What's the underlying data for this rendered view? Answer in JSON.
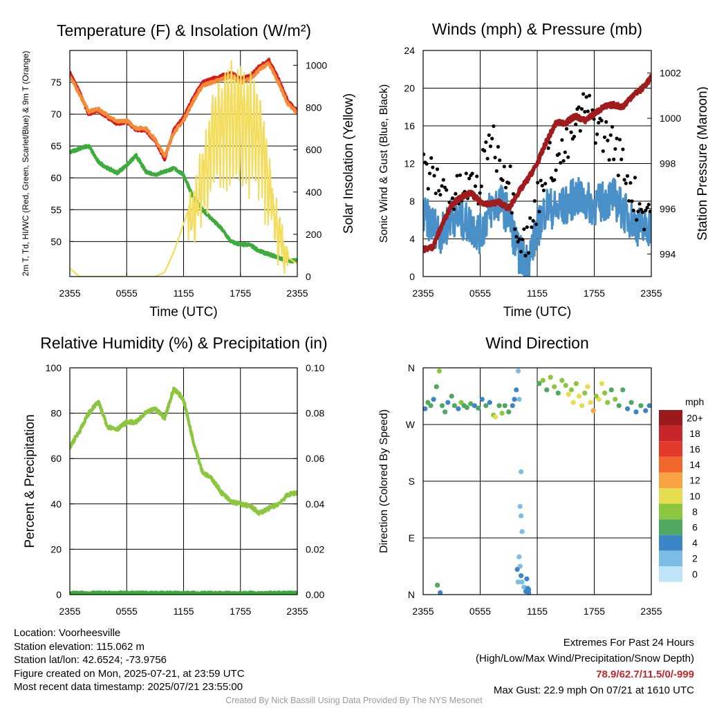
{
  "footer": {
    "location": "Location: Voorheesville",
    "elevation": "Station elevation: 115.062 m",
    "latlon": "Station lat/lon: 42.6524; -73.9756",
    "created": "Figure created on Mon, 2025-07-21, at 23:59 UTC",
    "recent": "Most recent data timestamp: 2025/07/21 23:55:00",
    "extremes_title": "Extremes For Past 24 Hours",
    "extremes_legend": "(High/Low/Max Wind/Precipitation/Snow Depth)",
    "extremes_values": "78.9/62.7/11.5/0/-999",
    "max_gust": "Max Gust: 22.9 mph On 07/21 at 1610 UTC",
    "credit": "Created By Nick Bassill Using Data Provided By The NYS Mesonet"
  },
  "chart_data": [
    {
      "type": "line",
      "title": "Temperature (F) & Insolation (W/m²)",
      "xlabel": "Time (UTC)",
      "ylabel": "2m T, Td, HI/WC (Red, Green, Scarlet/Blue) & 9m T (Orange)",
      "y2label": "Solar Insolation (Yellow)",
      "xlim": [
        0,
        24
      ],
      "xticks": [
        0,
        6,
        12,
        18,
        24
      ],
      "xticklabels": [
        "2355",
        "0555",
        "1155",
        "1755",
        "2355"
      ],
      "ylim": [
        44.5,
        80
      ],
      "yticks": [
        50,
        55,
        60,
        65,
        70,
        75
      ],
      "y2lim": [
        0,
        1070
      ],
      "y2ticks": [
        0,
        200,
        400,
        600,
        800,
        1000
      ],
      "grid": true,
      "x": [
        0,
        1,
        2,
        3,
        4,
        5,
        6,
        7,
        8,
        9,
        10,
        11,
        12,
        13,
        14,
        15,
        16,
        17,
        18,
        19,
        20,
        21,
        22,
        23,
        24
      ],
      "series": [
        {
          "role": "2m T",
          "color": "#d7191c",
          "axis": "left",
          "values": [
            76.5,
            73.5,
            70.0,
            70.5,
            69.5,
            68.5,
            68.8,
            67.5,
            67.5,
            65.8,
            63.0,
            67.5,
            69.5,
            72.5,
            75.0,
            75.5,
            76.0,
            76.5,
            75.5,
            76.0,
            77.5,
            78.5,
            75.5,
            72.0,
            70.5
          ]
        },
        {
          "role": "9m T",
          "color": "#f58a3a",
          "axis": "left",
          "values": [
            76.0,
            73.2,
            70.4,
            70.8,
            69.8,
            68.8,
            69.0,
            67.8,
            67.8,
            66.0,
            63.4,
            67.2,
            69.0,
            72.0,
            74.5,
            75.0,
            75.5,
            76.0,
            75.0,
            75.5,
            77.0,
            78.0,
            75.0,
            71.6,
            70.2
          ]
        },
        {
          "role": "Td",
          "color": "#3cac3c",
          "axis": "left",
          "values": [
            64.0,
            64.6,
            65.0,
            62.5,
            61.5,
            60.8,
            62.0,
            63.5,
            61.0,
            60.5,
            61.0,
            61.5,
            60.5,
            57.0,
            55.0,
            53.5,
            52.0,
            50.0,
            49.5,
            49.5,
            48.5,
            48.0,
            47.5,
            47.0,
            47.0
          ]
        },
        {
          "role": "Solar insolation",
          "color": "#f4dc5c",
          "axis": "right",
          "values": [
            40,
            0,
            0,
            0,
            0,
            0,
            0,
            0,
            0,
            0,
            20,
            120,
            250,
            380,
            560,
            820,
            900,
            940,
            950,
            900,
            820,
            520,
            230,
            90,
            60
          ]
        }
      ]
    },
    {
      "type": "scatter",
      "title": "Winds (mph) & Pressure (mb)",
      "xlabel": "Time (UTC)",
      "ylabel": "Sonic Wind & Gust (Blue, Black)",
      "y2label": "Station Pressure (Maroon)",
      "xlim": [
        0,
        24
      ],
      "xticks": [
        0,
        6,
        12,
        18,
        24
      ],
      "xticklabels": [
        "2355",
        "0555",
        "1155",
        "1755",
        "2355"
      ],
      "ylim": [
        0,
        24
      ],
      "yticks": [
        0,
        4,
        8,
        12,
        16,
        20,
        24
      ],
      "y2lim": [
        993.0,
        1003.0
      ],
      "y2ticks": [
        994,
        996,
        998,
        1000,
        1002
      ],
      "grid": true,
      "x": [
        0,
        1,
        2,
        3,
        4,
        5,
        6,
        7,
        8,
        9,
        10,
        11,
        12,
        13,
        14,
        15,
        16,
        17,
        18,
        19,
        20,
        21,
        22,
        23,
        24
      ],
      "series": [
        {
          "role": "Sonic wind",
          "color": "#4a90c8",
          "axis": "left",
          "values": [
            6.5,
            5.5,
            4.5,
            6.5,
            6.0,
            5.5,
            4.5,
            7.0,
            8.0,
            6.5,
            2.5,
            1.5,
            5.0,
            7.5,
            7.0,
            7.5,
            8.5,
            8.0,
            7.5,
            8.0,
            8.5,
            7.0,
            6.0,
            5.0,
            5.5
          ]
        },
        {
          "role": "Gust",
          "color": "#000000",
          "axis": "left",
          "values": [
            11.5,
            10.5,
            9.5,
            8.0,
            9.0,
            9.5,
            9.5,
            15.5,
            12.5,
            11.0,
            5.0,
            3.5,
            8.0,
            12.5,
            12.0,
            13.5,
            15.5,
            18.0,
            16.5,
            15.0,
            14.0,
            12.0,
            9.0,
            7.0,
            7.5
          ]
        },
        {
          "role": "Station pressure",
          "color": "#a01c1c",
          "axis": "right",
          "values": [
            994.2,
            994.3,
            995.3,
            996.2,
            996.5,
            996.7,
            996.3,
            996.2,
            996.3,
            996.0,
            996.7,
            997.3,
            998.0,
            999.0,
            999.8,
            999.8,
            1000.1,
            999.9,
            1000.2,
            1000.5,
            1000.6,
            1000.5,
            1001.0,
            1001.3,
            1001.8
          ]
        }
      ]
    },
    {
      "type": "line",
      "title": "Relative Humidity (%) & Precipitation (in)",
      "xlabel": "",
      "ylabel": "Percent & Precipitation",
      "xlim": [
        0,
        24
      ],
      "xticks": [
        0,
        6,
        12,
        18,
        24
      ],
      "xticklabels": [
        "2355",
        "0555",
        "1155",
        "1755",
        "2355"
      ],
      "ylim": [
        0,
        100
      ],
      "yticks": [
        0,
        20,
        40,
        60,
        80,
        100
      ],
      "y2lim": [
        0,
        0.1
      ],
      "y2ticks": [
        0,
        0.02,
        0.04,
        0.06,
        0.08,
        0.1
      ],
      "y2ticklabels": [
        "0.00",
        "0.02",
        "0.04",
        "0.06",
        "0.08",
        "0.10"
      ],
      "grid": true,
      "x": [
        0,
        1,
        2,
        3,
        4,
        5,
        6,
        7,
        8,
        9,
        10,
        11,
        12,
        13,
        14,
        15,
        16,
        17,
        18,
        19,
        20,
        21,
        22,
        23,
        24
      ],
      "series": [
        {
          "role": "Relative humidity",
          "color": "#8cc63e",
          "axis": "left",
          "values": [
            65,
            72,
            80,
            85,
            74,
            73,
            76,
            76,
            80,
            82,
            78,
            91,
            86,
            68,
            54,
            51,
            45,
            41,
            40,
            39,
            36,
            38,
            40,
            44,
            45
          ]
        },
        {
          "role": "Precipitation",
          "color": "#3aaa3a",
          "axis": "right",
          "values": [
            0,
            0,
            0,
            0,
            0,
            0,
            0,
            0,
            0,
            0,
            0,
            0,
            0,
            0,
            0,
            0,
            0,
            0,
            0,
            0,
            0,
            0,
            0,
            0,
            0
          ]
        }
      ]
    },
    {
      "type": "scatter",
      "title": "Wind Direction",
      "xlabel": "",
      "ylabel": "Direction (Colored By Speed)",
      "xlim": [
        0,
        24
      ],
      "xticks": [
        0,
        6,
        12,
        18,
        24
      ],
      "xticklabels": [
        "2355",
        "0555",
        "1155",
        "1755",
        "2355"
      ],
      "ylim": [
        0,
        360
      ],
      "yticks": [
        0,
        90,
        180,
        270,
        360
      ],
      "yticklabels": [
        "N",
        "E",
        "S",
        "W",
        "N"
      ],
      "grid": true,
      "legend": {
        "title": "mph",
        "placement": "right",
        "labels": [
          "20+",
          "18",
          "16",
          "14",
          "12",
          "10",
          "8",
          "6",
          "4",
          "2",
          "0"
        ],
        "colors": [
          "#9c1a1c",
          "#c7262b",
          "#e23a2a",
          "#f2672c",
          "#f8a344",
          "#e5dc50",
          "#8cc63e",
          "#4ea860",
          "#3d86c6",
          "#7cbde6",
          "#bfe4f7"
        ]
      },
      "points": [
        {
          "x": 0.2,
          "dir": 295,
          "mph": 4
        },
        {
          "x": 0.5,
          "dir": 305,
          "mph": 5
        },
        {
          "x": 0.8,
          "dir": 300,
          "mph": 6
        },
        {
          "x": 1.1,
          "dir": 310,
          "mph": 4
        },
        {
          "x": 1.4,
          "dir": 330,
          "mph": 6
        },
        {
          "x": 1.7,
          "dir": 355,
          "mph": 7
        },
        {
          "x": 2.0,
          "dir": 300,
          "mph": 5
        },
        {
          "x": 2.3,
          "dir": 290,
          "mph": 6
        },
        {
          "x": 2.6,
          "dir": 305,
          "mph": 4
        },
        {
          "x": 3.0,
          "dir": 315,
          "mph": 5
        },
        {
          "x": 3.3,
          "dir": 300,
          "mph": 6
        },
        {
          "x": 3.7,
          "dir": 295,
          "mph": 4
        },
        {
          "x": 4.0,
          "dir": 305,
          "mph": 7
        },
        {
          "x": 4.3,
          "dir": 300,
          "mph": 6
        },
        {
          "x": 4.6,
          "dir": 297,
          "mph": 5
        },
        {
          "x": 5.0,
          "dir": 303,
          "mph": 6
        },
        {
          "x": 5.4,
          "dir": 300,
          "mph": 4
        },
        {
          "x": 5.8,
          "dir": 296,
          "mph": 5
        },
        {
          "x": 6.2,
          "dir": 310,
          "mph": 4
        },
        {
          "x": 6.6,
          "dir": 300,
          "mph": 6
        },
        {
          "x": 7.0,
          "dir": 305,
          "mph": 4
        },
        {
          "x": 7.4,
          "dir": 285,
          "mph": 8
        },
        {
          "x": 7.6,
          "dir": 282,
          "mph": 10
        },
        {
          "x": 8.0,
          "dir": 300,
          "mph": 5
        },
        {
          "x": 8.3,
          "dir": 288,
          "mph": 7
        },
        {
          "x": 8.6,
          "dir": 300,
          "mph": 6
        },
        {
          "x": 9.0,
          "dir": 290,
          "mph": 5
        },
        {
          "x": 9.4,
          "dir": 300,
          "mph": 3
        },
        {
          "x": 9.6,
          "dir": 310,
          "mph": 3
        },
        {
          "x": 9.8,
          "dir": 325,
          "mph": 4
        },
        {
          "x": 10.0,
          "dir": 355,
          "mph": 1
        },
        {
          "x": 10.1,
          "dir": 310,
          "mph": 1
        },
        {
          "x": 10.3,
          "dir": 195,
          "mph": 1
        },
        {
          "x": 10.2,
          "dir": 140,
          "mph": 2
        },
        {
          "x": 10.3,
          "dir": 125,
          "mph": 1
        },
        {
          "x": 10.4,
          "dir": 100,
          "mph": 1
        },
        {
          "x": 10.1,
          "dir": 60,
          "mph": 2
        },
        {
          "x": 10.2,
          "dir": 45,
          "mph": 2
        },
        {
          "x": 10.3,
          "dir": 30,
          "mph": 3
        },
        {
          "x": 10.4,
          "dir": 20,
          "mph": 2
        },
        {
          "x": 10.6,
          "dir": 12,
          "mph": 2
        },
        {
          "x": 10.8,
          "dir": 5,
          "mph": 3
        },
        {
          "x": 11.0,
          "dir": 10,
          "mph": 4
        },
        {
          "x": 9.9,
          "dir": 40,
          "mph": 3
        },
        {
          "x": 10.0,
          "dir": 20,
          "mph": 2
        },
        {
          "x": 10.9,
          "dir": 25,
          "mph": 3
        },
        {
          "x": 11.1,
          "dir": 8,
          "mph": 4
        },
        {
          "x": 11.1,
          "dir": 3,
          "mph": 4
        },
        {
          "x": 12.2,
          "dir": 335,
          "mph": 5
        },
        {
          "x": 12.6,
          "dir": 340,
          "mph": 7
        },
        {
          "x": 13.0,
          "dir": 325,
          "mph": 6
        },
        {
          "x": 13.4,
          "dir": 345,
          "mph": 8
        },
        {
          "x": 13.8,
          "dir": 330,
          "mph": 7
        },
        {
          "x": 14.2,
          "dir": 320,
          "mph": 6
        },
        {
          "x": 14.6,
          "dir": 340,
          "mph": 8
        },
        {
          "x": 15.0,
          "dir": 332,
          "mph": 7
        },
        {
          "x": 15.3,
          "dir": 318,
          "mph": 9
        },
        {
          "x": 15.6,
          "dir": 325,
          "mph": 8
        },
        {
          "x": 15.8,
          "dir": 305,
          "mph": 10
        },
        {
          "x": 16.1,
          "dir": 335,
          "mph": 7
        },
        {
          "x": 16.4,
          "dir": 315,
          "mph": 9
        },
        {
          "x": 16.7,
          "dir": 300,
          "mph": 10
        },
        {
          "x": 17.0,
          "dir": 320,
          "mph": 8
        },
        {
          "x": 17.3,
          "dir": 330,
          "mph": 9
        },
        {
          "x": 17.6,
          "dir": 305,
          "mph": 10
        },
        {
          "x": 17.9,
          "dir": 292,
          "mph": 11
        },
        {
          "x": 18.2,
          "dir": 315,
          "mph": 8
        },
        {
          "x": 18.5,
          "dir": 310,
          "mph": 9
        },
        {
          "x": 18.8,
          "dir": 335,
          "mph": 10
        },
        {
          "x": 19.1,
          "dir": 320,
          "mph": 7
        },
        {
          "x": 19.4,
          "dir": 305,
          "mph": 8
        },
        {
          "x": 19.8,
          "dir": 325,
          "mph": 6
        },
        {
          "x": 20.2,
          "dir": 310,
          "mph": 7
        },
        {
          "x": 20.6,
          "dir": 300,
          "mph": 5
        },
        {
          "x": 21.0,
          "dir": 325,
          "mph": 6
        },
        {
          "x": 21.5,
          "dir": 295,
          "mph": 4
        },
        {
          "x": 21.9,
          "dir": 305,
          "mph": 5
        },
        {
          "x": 22.4,
          "dir": 290,
          "mph": 4
        },
        {
          "x": 22.9,
          "dir": 300,
          "mph": 5
        },
        {
          "x": 23.4,
          "dir": 292,
          "mph": 4
        },
        {
          "x": 23.8,
          "dir": 300,
          "mph": 4
        },
        {
          "x": 1.5,
          "dir": 15,
          "mph": 6
        },
        {
          "x": 1.8,
          "dir": 3,
          "mph": 4
        }
      ]
    }
  ]
}
